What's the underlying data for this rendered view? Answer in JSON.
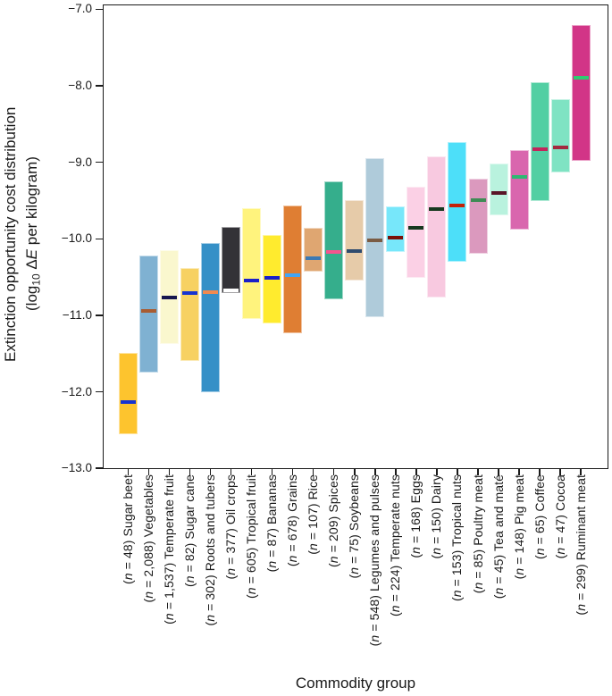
{
  "chart_data": {
    "type": "bar",
    "subtype": "floating-range-bars-with-median",
    "title": "",
    "xlabel": "Commodity group",
    "ylabel_line1": "Extinction opportunity cost distribution",
    "ylabel_line2": "(log10 ΔE per kilogram)",
    "ylim": [
      -13.0,
      -7.0
    ],
    "grid": "off",
    "legend": "none",
    "yticks": [
      {
        "value": -7.0,
        "label": "−7.0"
      },
      {
        "value": -8.0,
        "label": "−8.0"
      },
      {
        "value": -9.0,
        "label": "−9.0"
      },
      {
        "value": -10.0,
        "label": "−10.0"
      },
      {
        "value": -11.0,
        "label": "−11.0"
      },
      {
        "value": -12.0,
        "label": "−12.0"
      },
      {
        "value": -13.0,
        "label": "−13.0"
      }
    ],
    "categories": [
      {
        "name": "Sugar beet",
        "n": "48",
        "low": -12.55,
        "high": -11.49,
        "median": -12.12,
        "color": "#FDC42E",
        "median_color": "#1733D1"
      },
      {
        "name": "Vegetables",
        "n": "2,088",
        "low": -11.75,
        "high": -10.22,
        "median": -10.93,
        "color": "#7FB1D2",
        "median_color": "#A85C32"
      },
      {
        "name": "Temperate fruit",
        "n": "1,537",
        "low": -11.37,
        "high": -10.15,
        "median": -10.76,
        "color": "#FAF7CE",
        "median_color": "#16164F"
      },
      {
        "name": "Sugar cane",
        "n": "82",
        "low": -11.6,
        "high": -10.38,
        "median": -10.7,
        "color": "#F7D162",
        "median_color": "#1733D1"
      },
      {
        "name": "Roots and tubers",
        "n": "302",
        "low": -12.0,
        "high": -10.05,
        "median": -10.69,
        "color": "#3590C7",
        "median_color": "#F08A50"
      },
      {
        "name": "Oil crops",
        "n": "377",
        "low": -10.71,
        "high": -9.84,
        "median": -10.66,
        "color": "#333237",
        "median_color": "#FFFFFF"
      },
      {
        "name": "Tropical fruit",
        "n": "605",
        "low": -11.05,
        "high": -9.6,
        "median": -10.53,
        "color": "#FFF37D",
        "median_color": "#1A1FC9"
      },
      {
        "name": "Bananas",
        "n": "87",
        "low": -11.11,
        "high": -9.95,
        "median": -10.5,
        "color": "#FFEB2E",
        "median_color": "#1A1FC9"
      },
      {
        "name": "Grains",
        "n": "678",
        "low": -11.23,
        "high": -9.56,
        "median": -10.46,
        "color": "#DF7E33",
        "median_color": "#42A5F5"
      },
      {
        "name": "Rice",
        "n": "107",
        "low": -10.43,
        "high": -9.86,
        "median": -10.24,
        "color": "#DFA671",
        "median_color": "#3C79B4"
      },
      {
        "name": "Spices",
        "n": "209",
        "low": -10.79,
        "high": -9.25,
        "median": -10.16,
        "color": "#35AE8C",
        "median_color": "#F5548E"
      },
      {
        "name": "Soybeans",
        "n": "75",
        "low": -10.54,
        "high": -9.49,
        "median": -10.15,
        "color": "#E6CBA9",
        "median_color": "#2F4B6E"
      },
      {
        "name": "Legumes and pulses",
        "n": "548",
        "low": -11.02,
        "high": -8.94,
        "median": -10.01,
        "color": "#AFCBDA",
        "median_color": "#7A5C44"
      },
      {
        "name": "Temperate nuts",
        "n": "224",
        "low": -10.17,
        "high": -9.58,
        "median": -9.97,
        "color": "#77E7FA",
        "median_color": "#7A1008"
      },
      {
        "name": "Eggs",
        "n": "168",
        "low": -10.51,
        "high": -9.32,
        "median": -9.84,
        "color": "#FBD0E5",
        "median_color": "#17381F"
      },
      {
        "name": "Dairy",
        "n": "150",
        "low": -10.77,
        "high": -8.92,
        "median": -9.6,
        "color": "#F8C9E0",
        "median_color": "#17381F"
      },
      {
        "name": "Tropical nuts",
        "n": "153",
        "low": -10.3,
        "high": -8.73,
        "median": -9.55,
        "color": "#4DDFF9",
        "median_color": "#C42108"
      },
      {
        "name": "Poultry meat",
        "n": "85",
        "low": -10.2,
        "high": -9.21,
        "median": -9.48,
        "color": "#DB99BE",
        "median_color": "#3E8B55"
      },
      {
        "name": "Tea and maté",
        "n": "45",
        "low": -9.69,
        "high": -9.01,
        "median": -9.39,
        "color": "#B9F2DE",
        "median_color": "#5A1528"
      },
      {
        "name": "Pig meat",
        "n": "148",
        "low": -9.88,
        "high": -8.84,
        "median": -9.18,
        "color": "#D966AE",
        "median_color": "#2EB873"
      },
      {
        "name": "Coffee",
        "n": "65",
        "low": -9.51,
        "high": -7.95,
        "median": -8.82,
        "color": "#52CFA3",
        "median_color": "#C2255C"
      },
      {
        "name": "Cocoa",
        "n": "47",
        "low": -9.13,
        "high": -8.17,
        "median": -8.79,
        "color": "#7FE3C3",
        "median_color": "#A3293F"
      },
      {
        "name": "Ruminant meat",
        "n": "299",
        "low": -8.98,
        "high": -7.21,
        "median": -7.88,
        "color": "#D23587",
        "median_color": "#2ECC71"
      }
    ]
  }
}
